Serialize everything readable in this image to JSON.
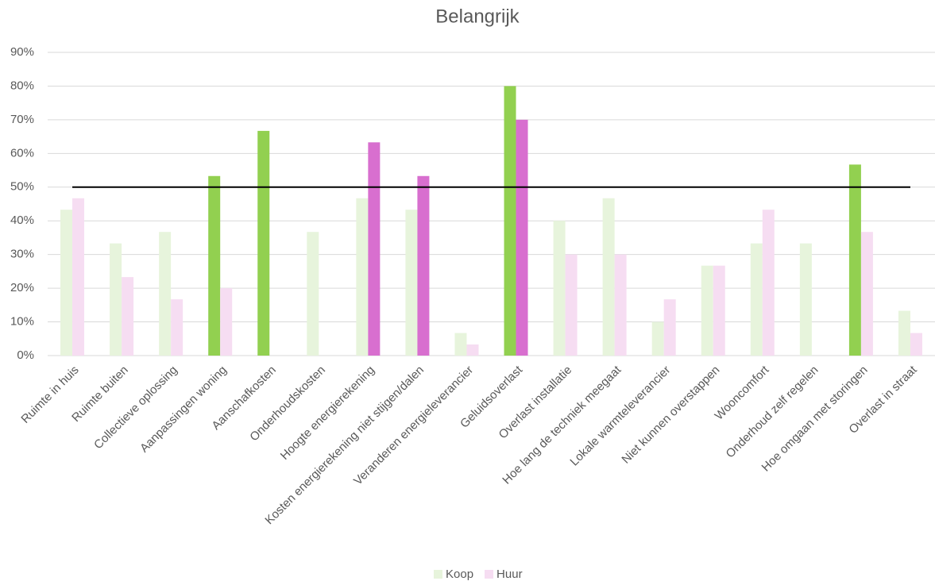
{
  "chart_data": {
    "type": "bar",
    "title": "Belangrijk",
    "categories": [
      "Ruimte in huis",
      "Ruimte buiten",
      "Collectieve oplossing",
      "Aanpassingen woning",
      "Aanschafkosten",
      "Onderhoudskosten",
      "Hoogte energierekening",
      "Kosten energierekening niet stijgen/dalen",
      "Veranderen energieleverancier",
      "Geluidsoverlast",
      "Overlast installatie",
      "Hoe lang de techniek meegaat",
      "Lokale warmteleverancier",
      "Niet kunnen overstappen",
      "Wooncomfort",
      "Onderhoud zelf regelen",
      "Hoe omgaan met storingen",
      "Overlast in straat"
    ],
    "series": [
      {
        "name": "Koop",
        "color": "#e7f4dc",
        "highlight_color": "#92d050",
        "values": [
          43.3,
          33.3,
          36.7,
          53.3,
          66.7,
          36.7,
          46.7,
          43.3,
          6.7,
          80,
          40,
          46.7,
          10,
          26.7,
          33.3,
          33.3,
          56.7,
          13.3
        ]
      },
      {
        "name": "Huur",
        "color": "#f6ddf2",
        "highlight_color": "#d86fcf",
        "values": [
          46.7,
          23.3,
          16.7,
          20,
          0,
          0,
          63.3,
          53.3,
          3.3,
          70,
          30,
          30,
          16.7,
          26.7,
          43.3,
          0,
          36.7,
          6.7
        ]
      }
    ],
    "reference_line": 50,
    "ylim": [
      0,
      90
    ],
    "yticks": [
      {
        "value": 0,
        "label": "0%"
      },
      {
        "value": 10,
        "label": "10%"
      },
      {
        "value": 20,
        "label": "20%"
      },
      {
        "value": 30,
        "label": "30%"
      },
      {
        "value": 40,
        "label": "40%"
      },
      {
        "value": 50,
        "label": "50%"
      },
      {
        "value": 60,
        "label": "60%"
      },
      {
        "value": 70,
        "label": "70%"
      },
      {
        "value": 80,
        "label": "80%"
      },
      {
        "value": 90,
        "label": "90%"
      }
    ],
    "grid": true,
    "legend": "bottom"
  }
}
